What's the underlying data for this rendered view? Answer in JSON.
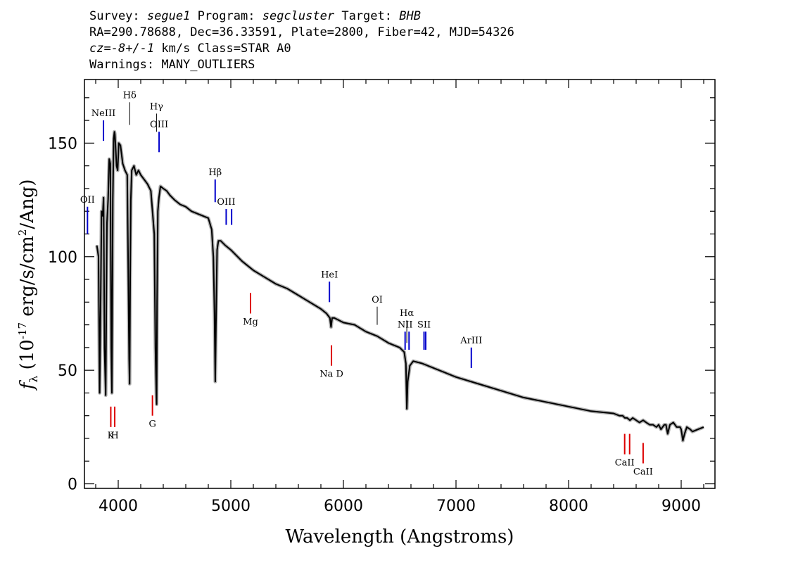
{
  "header": {
    "survey_label": "Survey:",
    "survey": "segue1",
    "program_label": "Program:",
    "program": "segcluster",
    "target_label": "Target:",
    "target": "BHB",
    "line2": "RA=290.78688, Dec=36.33591, Plate=2800, Fiber=42, MJD=54326",
    "cz_label": "cz=",
    "cz": "-8+/-1",
    "cz_rest": " km/s Class=STAR A0",
    "warnings": "Warnings: MANY_OUTLIERS"
  },
  "colors": {
    "emission": "#0000cc",
    "absorption": "#dd0000",
    "spectrum": "#000000",
    "error": "#b0b0b0"
  },
  "chart_data": {
    "type": "line",
    "xlabel": "Wavelength (Angstroms)",
    "ylabel_prefix": "f",
    "ylabel_sub": "λ",
    "ylabel_units_a": " (10",
    "ylabel_exp": "-17",
    "ylabel_units_b": " erg/s/cm",
    "ylabel_exp2": "2",
    "ylabel_units_c": "/Ang)",
    "xlim": [
      3700,
      9300
    ],
    "ylim": [
      -2,
      178
    ],
    "xticks": [
      4000,
      5000,
      6000,
      7000,
      8000,
      9000
    ],
    "xtick_labels": [
      "4000",
      "5000",
      "6000",
      "7000",
      "8000",
      "9000"
    ],
    "yticks": [
      0,
      50,
      100,
      150
    ],
    "ytick_labels": [
      "0",
      "50",
      "100",
      "150"
    ],
    "series": [
      {
        "x": [
          3810,
          3825,
          3835,
          3845,
          3852,
          3862,
          3870,
          3878,
          3889,
          3900,
          3910,
          3920,
          3930,
          3938,
          3944,
          3952,
          3960,
          3966,
          3970,
          3975,
          3985,
          3995,
          4005,
          4020,
          4040,
          4060,
          4080,
          4092,
          4097,
          4101,
          4106,
          4112,
          4120,
          4140,
          4160,
          4180,
          4200,
          4230,
          4260,
          4290,
          4320,
          4330,
          4338,
          4341,
          4345,
          4352,
          4362,
          4375,
          4400,
          4430,
          4460,
          4500,
          4550,
          4600,
          4650,
          4700,
          4750,
          4800,
          4830,
          4845,
          4855,
          4862,
          4868,
          4878,
          4890,
          4910,
          4950,
          5000,
          5100,
          5200,
          5300,
          5400,
          5500,
          5600,
          5700,
          5800,
          5850,
          5880,
          5890,
          5900,
          5920,
          6000,
          6100,
          6200,
          6300,
          6400,
          6500,
          6540,
          6555,
          6563,
          6571,
          6590,
          6620,
          6700,
          6800,
          7000,
          7200,
          7400,
          7600,
          7800,
          8000,
          8200,
          8400,
          8450,
          8480,
          8500,
          8520,
          8545,
          8570,
          8600,
          8630,
          8662,
          8690,
          8720,
          8750,
          8780,
          8800,
          8820,
          8850,
          8865,
          8880,
          8900,
          8930,
          8960,
          8990,
          9000,
          9015,
          9030,
          9050,
          9080,
          9100,
          9150,
          9200
        ],
        "y": [
          105,
          100,
          40,
          85,
          120,
          118,
          126,
          60,
          39,
          115,
          125,
          143,
          141,
          60,
          40,
          125,
          152,
          155,
          154,
          150,
          140,
          138,
          150,
          149,
          141,
          138,
          136,
          80,
          55,
          44,
          90,
          125,
          138,
          140,
          136,
          138,
          136,
          134,
          132,
          129,
          110,
          60,
          40,
          35,
          80,
          120,
          126,
          131,
          130,
          129,
          127,
          125,
          123,
          122,
          120,
          119,
          118,
          117,
          112,
          100,
          75,
          45,
          70,
          103,
          107,
          107,
          105,
          103,
          98,
          94,
          91,
          88,
          86,
          83,
          80,
          77,
          75,
          73,
          69,
          73,
          73,
          71,
          70,
          67,
          65,
          62,
          60,
          58,
          53,
          33,
          45,
          52,
          54,
          53,
          51,
          47,
          44,
          41,
          38,
          36,
          34,
          32,
          31,
          30,
          30,
          29,
          29,
          28,
          29,
          28,
          27,
          28,
          27,
          26,
          26,
          25,
          26,
          24,
          26,
          26,
          22,
          26,
          27,
          25,
          25,
          24,
          19,
          22,
          25,
          24,
          23,
          24,
          25
        ]
      }
    ]
  },
  "line_labels": {
    "emission": [
      {
        "label": "OII",
        "wave": 3727,
        "top": 122,
        "bottom": 110
      },
      {
        "label": "NeIII",
        "wave": 3869,
        "top": 160,
        "bottom": 151
      },
      {
        "label": "OIII",
        "wave": 4363,
        "top": 155,
        "bottom": 146
      },
      {
        "label": "Hβ",
        "wave": 4861,
        "top": 134,
        "bottom": 124
      },
      {
        "label": "OIII",
        "wave": 4959,
        "top": 121,
        "bottom": 114
      },
      {
        "label": "OIII",
        "wave": 5007,
        "top": 121,
        "bottom": 114
      },
      {
        "label": "HeI",
        "wave": 5876,
        "top": 89,
        "bottom": 80
      },
      {
        "label": "NII",
        "wave": 6548,
        "top": 67,
        "bottom": 59
      },
      {
        "label": "NII",
        "wave": 6583,
        "top": 67,
        "bottom": 59
      },
      {
        "label": "SII",
        "wave": 6716,
        "top": 67,
        "bottom": 59
      },
      {
        "label": "SII",
        "wave": 6731,
        "top": 67,
        "bottom": 59
      },
      {
        "label": "ArIII",
        "wave": 7136,
        "top": 60,
        "bottom": 51
      }
    ],
    "balmer": [
      {
        "label": "Hδ",
        "wave": 4102,
        "top": 168,
        "bottom": 158
      },
      {
        "label": "Hγ",
        "wave": 4340,
        "top": 163,
        "bottom": 155
      },
      {
        "label": "OI",
        "wave": 6300,
        "top": 78,
        "bottom": 70
      },
      {
        "label": "Hα",
        "wave": 6563,
        "top": 72,
        "bottom": 62
      }
    ],
    "absorption": [
      {
        "label": "K",
        "wave": 3934,
        "top": 34,
        "bottom": 25
      },
      {
        "label": "H",
        "wave": 3969,
        "top": 34,
        "bottom": 25
      },
      {
        "label": "G",
        "wave": 4304,
        "top": 39,
        "bottom": 30
      },
      {
        "label": "Mg",
        "wave": 5175,
        "top": 84,
        "bottom": 75
      },
      {
        "label": "Na D",
        "wave": 5894,
        "top": 61,
        "bottom": 52
      },
      {
        "label": "CaII",
        "wave": 8498,
        "top": 22,
        "bottom": 13
      },
      {
        "label": "CaII",
        "wave": 8542,
        "top": 22,
        "bottom": 13
      },
      {
        "label": "CaII",
        "wave": 8662,
        "top": 18,
        "bottom": 9
      }
    ]
  }
}
